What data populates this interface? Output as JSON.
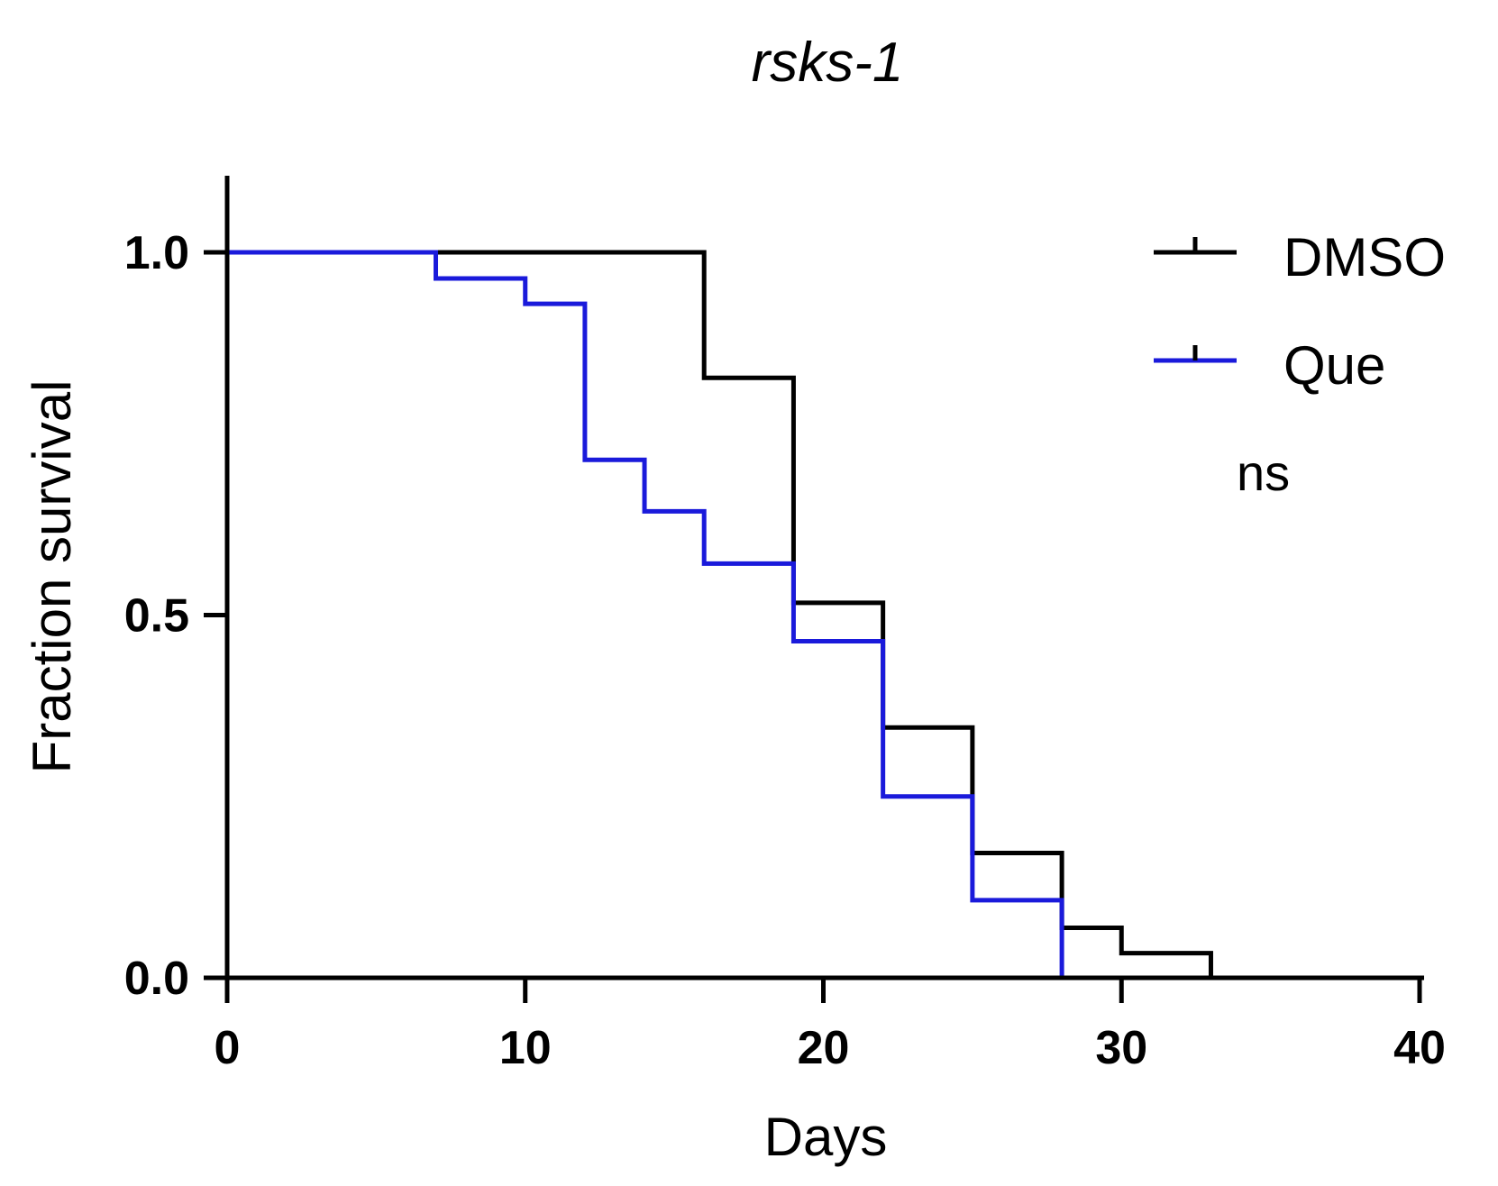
{
  "chart_data": {
    "type": "line",
    "step": true,
    "title": "rsks-1",
    "xlabel": "Days",
    "ylabel": "Fraction survival",
    "xlim": [
      0,
      40
    ],
    "ylim": [
      0,
      1.1
    ],
    "xticks": [
      0,
      10,
      20,
      30,
      40
    ],
    "xtick_labels": [
      "0",
      "10",
      "20",
      "30",
      "40"
    ],
    "yticks": [
      0,
      0.5,
      1.0
    ],
    "ytick_labels": [
      "0.0",
      "0.5",
      "1.0"
    ],
    "grid": false,
    "legend_position": "top-right",
    "annotation": "ns",
    "series": [
      {
        "name": "DMSO",
        "color": "#000000",
        "x": [
          0,
          16,
          19,
          22,
          25,
          28,
          30,
          33
        ],
        "y": [
          1.0,
          0.827,
          0.517,
          0.345,
          0.172,
          0.069,
          0.034,
          0.0
        ]
      },
      {
        "name": "Que",
        "color": "#1a1adb",
        "x": [
          0,
          7,
          10,
          12,
          14,
          16,
          19,
          22,
          25,
          28
        ],
        "y": [
          1.0,
          0.964,
          0.929,
          0.714,
          0.643,
          0.571,
          0.464,
          0.25,
          0.107,
          0.0
        ]
      }
    ]
  }
}
